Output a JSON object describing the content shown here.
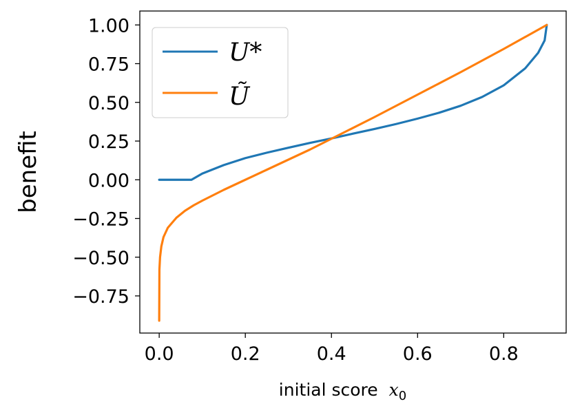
{
  "chart_data": {
    "type": "line",
    "title": "",
    "xlabel": "initial score",
    "xlabel_var": "x",
    "xlabel_sub": "0",
    "ylabel": "benefit",
    "xlim": [
      -0.045,
      0.945
    ],
    "ylim": [
      -0.99,
      1.09
    ],
    "xticks": [
      0.0,
      0.2,
      0.4,
      0.6,
      0.8
    ],
    "xtick_labels": [
      "0.0",
      "0.2",
      "0.4",
      "0.6",
      "0.8"
    ],
    "yticks": [
      -0.75,
      -0.5,
      -0.25,
      0.0,
      0.25,
      0.5,
      0.75,
      1.0
    ],
    "ytick_labels": [
      "−0.75",
      "−0.50",
      "−0.25",
      "0.00",
      "0.25",
      "0.50",
      "0.75",
      "1.00"
    ],
    "grid": false,
    "legend_position": "top-left",
    "series": [
      {
        "name": "U*",
        "color": "#1f77b4",
        "x": [
          0.0,
          0.02,
          0.04,
          0.06,
          0.075,
          0.1,
          0.15,
          0.2,
          0.25,
          0.3,
          0.35,
          0.4,
          0.45,
          0.5,
          0.55,
          0.6,
          0.65,
          0.7,
          0.75,
          0.8,
          0.85,
          0.88,
          0.895,
          0.9
        ],
        "y": [
          0.0,
          0.0,
          0.0,
          0.0,
          0.0,
          0.04,
          0.095,
          0.14,
          0.175,
          0.207,
          0.238,
          0.267,
          0.298,
          0.328,
          0.36,
          0.395,
          0.433,
          0.478,
          0.535,
          0.61,
          0.72,
          0.82,
          0.9,
          1.0
        ]
      },
      {
        "name": "Ũ",
        "color": "#ff7f0e",
        "x": [
          0.0,
          0.0005,
          0.002,
          0.005,
          0.01,
          0.02,
          0.04,
          0.06,
          0.08,
          0.1,
          0.15,
          0.2,
          0.25,
          0.3,
          0.35,
          0.4,
          0.5,
          0.6,
          0.7,
          0.8,
          0.9
        ],
        "y": [
          -0.91,
          -0.58,
          -0.5,
          -0.43,
          -0.37,
          -0.31,
          -0.245,
          -0.2,
          -0.165,
          -0.135,
          -0.065,
          0.0,
          0.065,
          0.13,
          0.195,
          0.265,
          0.405,
          0.55,
          0.695,
          0.845,
          1.0
        ]
      }
    ]
  }
}
